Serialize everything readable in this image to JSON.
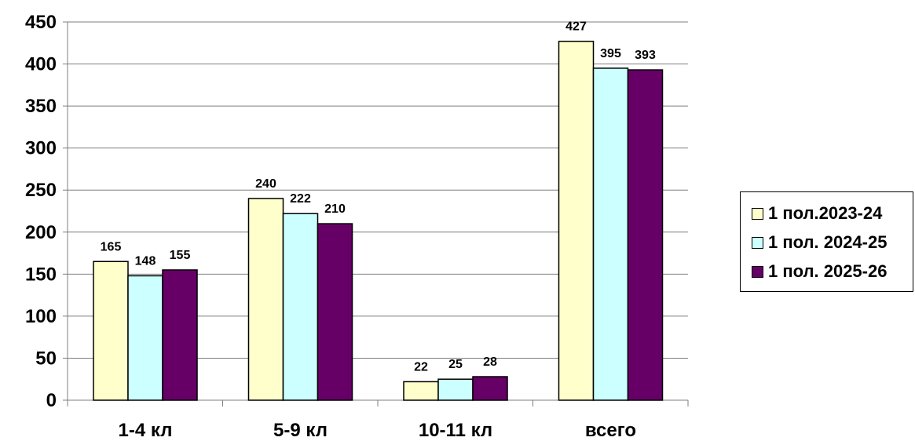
{
  "chart_data": {
    "type": "bar",
    "categories": [
      "1-4 кл",
      "5-9 кл",
      "10-11 кл",
      "всего"
    ],
    "series": [
      {
        "name": "1 пол.2023-24",
        "values": [
          165,
          240,
          22,
          427
        ],
        "color": "#FFFFCC"
      },
      {
        "name": "1 пол. 2024-25",
        "values": [
          148,
          222,
          25,
          395
        ],
        "color": "#CCFFFF"
      },
      {
        "name": "1 пол. 2025-26",
        "values": [
          155,
          210,
          28,
          393
        ],
        "color": "#660066"
      }
    ],
    "y_ticks": [
      0,
      50,
      100,
      150,
      200,
      250,
      300,
      350,
      400,
      450
    ],
    "ylim": [
      0,
      450
    ],
    "grid": true,
    "legend_position": "right",
    "title": "",
    "xlabel": "",
    "ylabel": ""
  }
}
